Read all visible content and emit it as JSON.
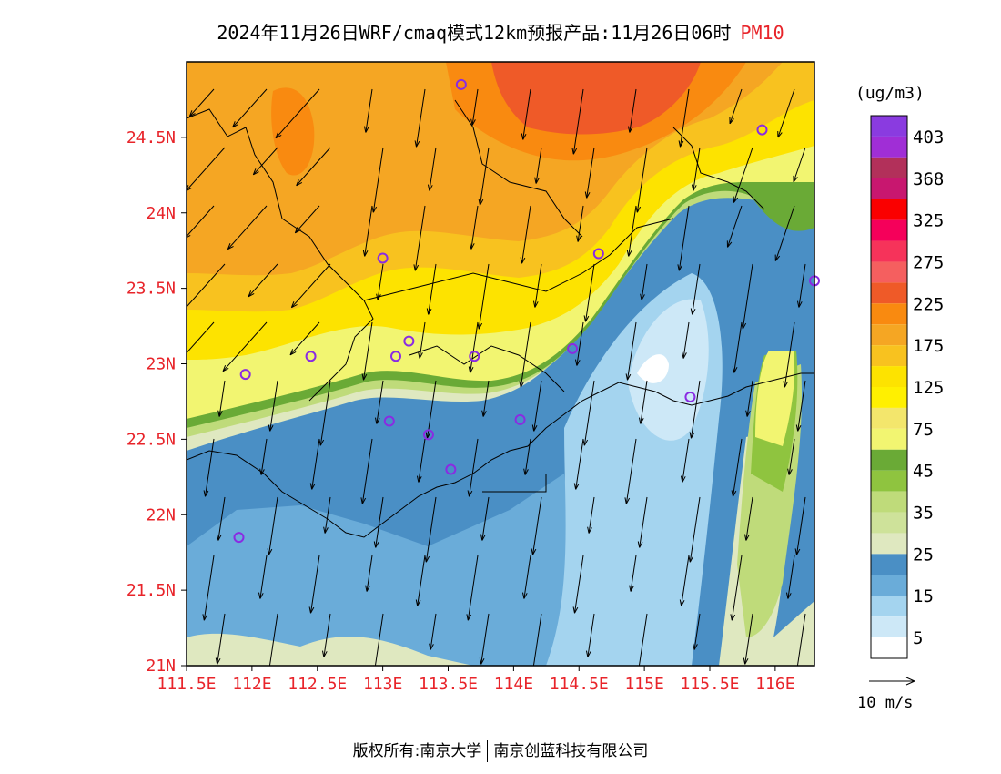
{
  "title": {
    "main": "2024年11月26日WRF/cmaq模式12km预报产品:11月26日06时",
    "pollutant": "PM10"
  },
  "axes": {
    "x_ticks": [
      "111.5E",
      "112E",
      "112.5E",
      "113E",
      "113.5E",
      "114E",
      "114.5E",
      "115E",
      "115.5E",
      "116E"
    ],
    "y_ticks": [
      "21N",
      "21.5N",
      "22N",
      "22.5N",
      "23N",
      "23.5N",
      "24N",
      "24.5N"
    ],
    "x_range": [
      111.5,
      116.3
    ],
    "y_range": [
      21.0,
      25.0
    ],
    "tick_color": "#e8242a"
  },
  "legend": {
    "unit": "(ug/m3)",
    "labels": [
      "403",
      "368",
      "325",
      "275",
      "225",
      "175",
      "125",
      "75",
      "45",
      "35",
      "25",
      "15",
      "5"
    ],
    "colors_top_to_bottom": [
      "#8a3be0",
      "#a02ed6",
      "#b2305a",
      "#c8176f",
      "#fa0000",
      "#f5005a",
      "#f6335a",
      "#f55f5f",
      "#ef5a28",
      "#f98a10",
      "#f5a623",
      "#f8c21f",
      "#fde300",
      "#fff000",
      "#f3e66c",
      "#f2f571",
      "#6aaa36",
      "#8fc43f",
      "#bfdb7a",
      "#cee29a",
      "#dfe8c0",
      "#4a8fc5",
      "#6aacd9",
      "#a4d4ef",
      "#cde8f7",
      "#ffffff"
    ]
  },
  "wind_reference": {
    "label": "10 m/s"
  },
  "footer": {
    "left": "版权所有:南京大学",
    "right": "南京创蓝科技有限公司"
  },
  "stations": [
    {
      "lon": 113.6,
      "lat": 24.85
    },
    {
      "lon": 115.9,
      "lat": 24.55
    },
    {
      "lon": 113.0,
      "lat": 23.7
    },
    {
      "lon": 114.65,
      "lat": 23.73
    },
    {
      "lon": 116.3,
      "lat": 23.55
    },
    {
      "lon": 112.45,
      "lat": 23.05
    },
    {
      "lon": 113.1,
      "lat": 23.05
    },
    {
      "lon": 113.2,
      "lat": 23.15
    },
    {
      "lon": 113.7,
      "lat": 23.05
    },
    {
      "lon": 114.45,
      "lat": 23.1
    },
    {
      "lon": 111.95,
      "lat": 22.93
    },
    {
      "lon": 115.35,
      "lat": 22.78
    },
    {
      "lon": 113.05,
      "lat": 22.62
    },
    {
      "lon": 113.35,
      "lat": 22.53
    },
    {
      "lon": 114.05,
      "lat": 22.63
    },
    {
      "lon": 113.52,
      "lat": 22.3
    },
    {
      "lon": 111.9,
      "lat": 21.85
    }
  ]
}
